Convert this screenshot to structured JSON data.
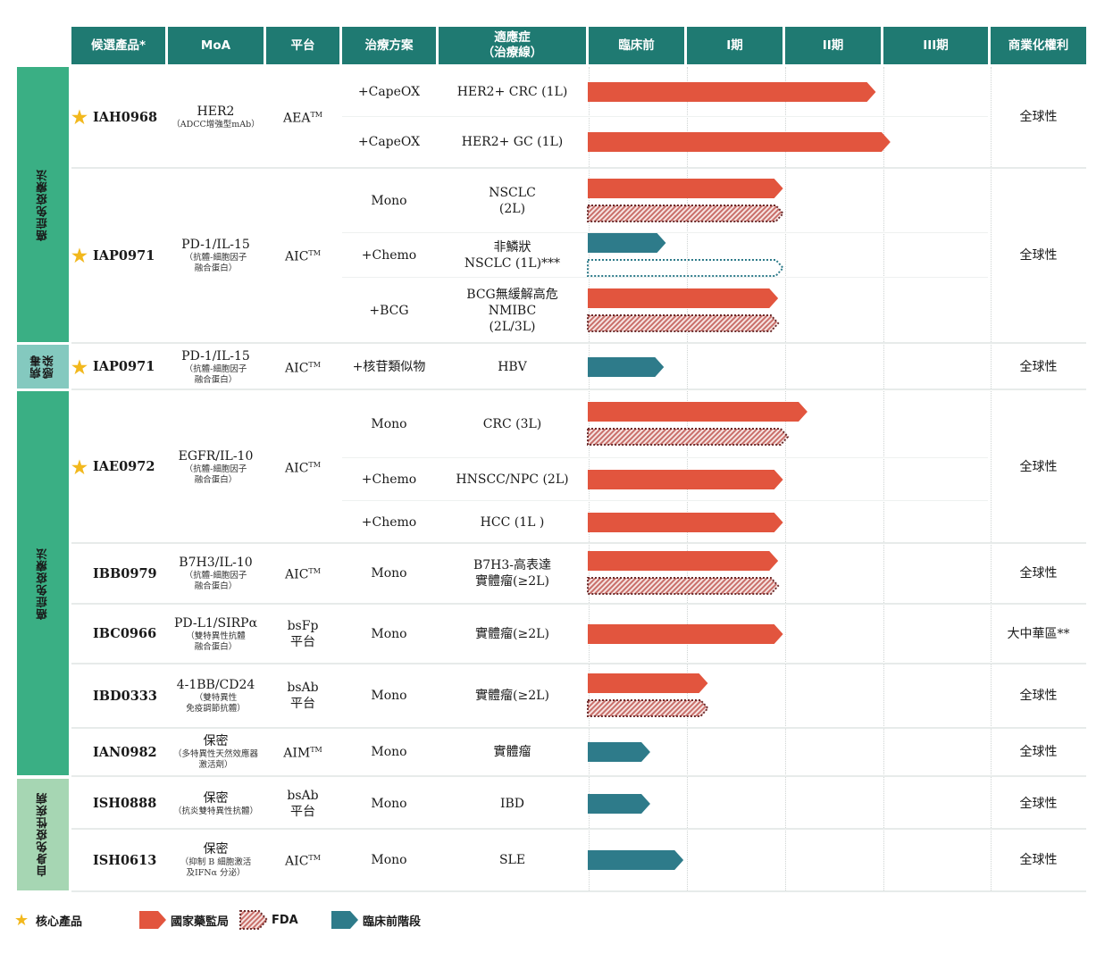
{
  "headers": [
    "候選產品*",
    "MoA",
    "平台",
    "治療方案",
    "適應症\n（治療線）",
    "臨床前",
    "I期",
    "II期",
    "III期",
    "商業化權利"
  ],
  "categories": [
    {
      "id": "cat1",
      "label": "癌症免疫療法",
      "color": "#3aaf84"
    },
    {
      "id": "cat2",
      "label": "病毒\n感染",
      "color": "#84c9bf"
    },
    {
      "id": "cat3",
      "label": "癌症免疫療法",
      "color": "#3aaf84"
    },
    {
      "id": "cat4",
      "label": "自身免疫性疾病",
      "color": "#a6d6b3"
    }
  ],
  "candidates": [
    {
      "name": "IAH0968",
      "core": true,
      "moa": "HER2",
      "moa_sub": "（ADCC增強型mAb）",
      "platform": "AEA",
      "platform_tm": "TM",
      "rights": "全球性",
      "regimens": [
        {
          "regimen": "+CapeOX",
          "indication": "HER2+ CRC (1L)",
          "bars": [
            {
              "type": "nmpa",
              "progress": 2.95
            }
          ]
        },
        {
          "regimen": "+CapeOX",
          "indication": "HER2+ GC (1L)",
          "bars": [
            {
              "type": "nmpa",
              "progress": 3.1
            }
          ]
        }
      ]
    },
    {
      "name": "IAP0971",
      "core": true,
      "moa": "PD-1/IL-15",
      "moa_sub": "（抗體-細胞因子\n融合蛋白）",
      "platform": "AIC",
      "platform_tm": "TM",
      "rights": "全球性",
      "regimens": [
        {
          "regimen": "Mono",
          "indication": "NSCLC\n(2L)",
          "bars": [
            {
              "type": "nmpa",
              "progress": 2.0
            },
            {
              "type": "fda",
              "progress": 2.0
            }
          ]
        },
        {
          "regimen": "+Chemo",
          "indication": "非鱗狀\nNSCLC (1L)***",
          "bars": [
            {
              "type": "preclinical",
              "progress": 0.8
            },
            {
              "type": "planned",
              "progress": 2.0
            }
          ]
        },
        {
          "regimen": "+BCG",
          "indication": "BCG無緩解高危\nNMIBC\n(2L/3L)",
          "bars": [
            {
              "type": "nmpa",
              "progress": 1.95
            },
            {
              "type": "fda",
              "progress": 1.95
            }
          ]
        }
      ]
    },
    {
      "name": "IAP0971",
      "core": true,
      "moa": "PD-1/IL-15",
      "moa_sub": "（抗體-細胞因子\n融合蛋白）",
      "platform": "AIC",
      "platform_tm": "TM",
      "rights": "全球性",
      "regimens": [
        {
          "regimen": "+核苷類似物",
          "indication": "HBV",
          "bars": [
            {
              "type": "preclinical",
              "progress": 0.78
            }
          ]
        }
      ]
    },
    {
      "name": "IAE0972",
      "core": true,
      "moa": "EGFR/IL-10",
      "moa_sub": "（抗體-細胞因子\n融合蛋白）",
      "platform": "AIC",
      "platform_tm": "TM",
      "rights": "全球性",
      "regimens": [
        {
          "regimen": "Mono",
          "indication": "CRC (3L)",
          "bars": [
            {
              "type": "nmpa",
              "progress": 2.25
            },
            {
              "type": "fda",
              "progress": 2.05
            }
          ]
        },
        {
          "regimen": "+Chemo",
          "indication": "HNSCC/NPC (2L)",
          "bars": [
            {
              "type": "nmpa",
              "progress": 2.0
            }
          ]
        },
        {
          "regimen": "+Chemo",
          "indication": "HCC (1L )",
          "bars": [
            {
              "type": "nmpa",
              "progress": 2.0
            }
          ]
        }
      ]
    },
    {
      "name": "IBB0979",
      "core": false,
      "moa": "B7H3/IL-10",
      "moa_sub": "（抗體-細胞因子\n融合蛋白）",
      "platform": "AIC",
      "platform_tm": "TM",
      "rights": "全球性",
      "regimens": [
        {
          "regimen": "Mono",
          "indication": "B7H3-高表達\n實體瘤(≥2L)",
          "bars": [
            {
              "type": "nmpa",
              "progress": 1.95
            },
            {
              "type": "fda",
              "progress": 1.95
            }
          ]
        }
      ]
    },
    {
      "name": "IBC0966",
      "core": false,
      "moa": "PD-L1/SIRPα",
      "moa_sub": "（雙特異性抗體\n融合蛋白）",
      "platform": "bsFp\n平台",
      "platform_tm": "",
      "rights": "大中華區**",
      "regimens": [
        {
          "regimen": "Mono",
          "indication": "實體瘤(≥2L)",
          "bars": [
            {
              "type": "nmpa",
              "progress": 2.0
            }
          ]
        }
      ]
    },
    {
      "name": "IBD0333",
      "core": false,
      "moa": "4-1BB/CD24",
      "moa_sub": "（雙特異性\n免疫調節抗體）",
      "platform": "bsAb\n平台",
      "platform_tm": "",
      "rights": "全球性",
      "regimens": [
        {
          "regimen": "Mono",
          "indication": "實體瘤(≥2L)",
          "bars": [
            {
              "type": "nmpa",
              "progress": 1.23
            },
            {
              "type": "fda",
              "progress": 1.23
            }
          ]
        }
      ]
    },
    {
      "name": "IAN0982",
      "core": false,
      "moa": "保密",
      "moa_sub": "（多特異性天然效應器\n激活劑）",
      "platform": "AIM",
      "platform_tm": "TM",
      "rights": "全球性",
      "regimens": [
        {
          "regimen": "Mono",
          "indication": "實體瘤",
          "bars": [
            {
              "type": "preclinical",
              "progress": 0.64
            }
          ]
        }
      ]
    },
    {
      "name": "ISH0888",
      "core": false,
      "moa": "保密",
      "moa_sub": "（抗炎雙特異性抗體）",
      "platform": "bsAb\n平台",
      "platform_tm": "",
      "rights": "全球性",
      "regimens": [
        {
          "regimen": "Mono",
          "indication": "IBD",
          "bars": [
            {
              "type": "preclinical",
              "progress": 0.64
            }
          ]
        }
      ]
    },
    {
      "name": "ISH0613",
      "core": false,
      "moa": "保密",
      "moa_sub": "（抑制 B 細胞激活\n及IFNα 分泌）",
      "platform": "AIC",
      "platform_tm": "TM",
      "rights": "全球性",
      "regimens": [
        {
          "regimen": "Mono",
          "indication": "SLE",
          "bars": [
            {
              "type": "preclinical",
              "progress": 0.98
            }
          ]
        }
      ]
    }
  ],
  "legend": [
    {
      "type": "core",
      "label": "核心產品"
    },
    {
      "type": "nmpa",
      "label": "國家藥監局"
    },
    {
      "type": "fda",
      "label": "FDA"
    },
    {
      "type": "preclinical",
      "label": "臨床前階段"
    }
  ],
  "colors": {
    "header": "#1f7a72",
    "nmpa": "#e2553e",
    "fda": "#d9a8a6",
    "preclinical": "#2e7b8a",
    "star": "#f2b81d"
  }
}
